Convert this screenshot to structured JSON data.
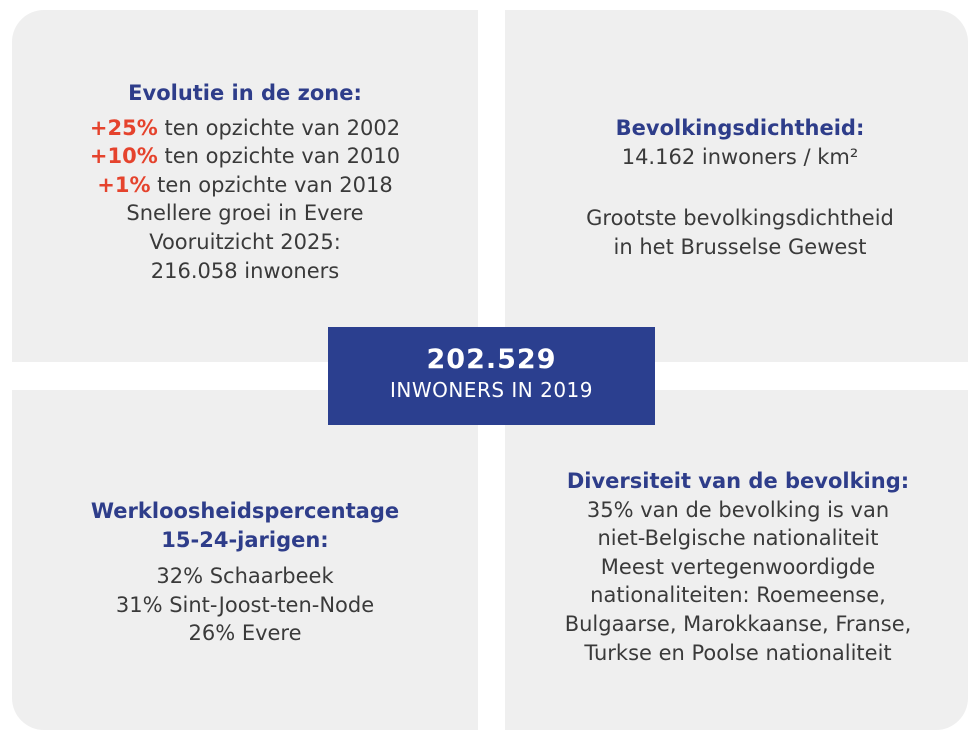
{
  "center": {
    "value": "202.529",
    "label": "INWONERS IN 2019"
  },
  "evolution": {
    "title": "Evolutie in de zone:",
    "changes": [
      {
        "highlight": "+25%",
        "text": "ten opzichte van 2002"
      },
      {
        "highlight": "+10%",
        "text": "ten opzichte van 2010"
      },
      {
        "highlight": "+1%",
        "text": "ten opzichte van 2018"
      }
    ],
    "lines": [
      "Snellere groei in Evere",
      "Vooruitzicht 2025:",
      "216.058 inwoners"
    ]
  },
  "density": {
    "title": "Bevolkingsdichtheid:",
    "value": "14.162 inwoners / km²",
    "lines": [
      "Grootste bevolkingsdichtheid",
      "in het Brusselse Gewest"
    ]
  },
  "unemployment": {
    "title": [
      "Werkloosheidspercentage",
      "15-24-jarigen:"
    ],
    "lines": [
      "32% Schaarbeek",
      "31% Sint-Joost-ten-Node",
      "26% Evere"
    ]
  },
  "diversity": {
    "title": "Diversiteit van de bevolking:",
    "lines": [
      "35% van de bevolking is van",
      "niet-Belgische nationaliteit",
      "Meest vertegenwoordigde",
      "nationaliteiten: Roemeense,",
      "Bulgaarse, Marokkaanse, Franse,",
      "Turkse en Poolse nationaliteit"
    ]
  }
}
